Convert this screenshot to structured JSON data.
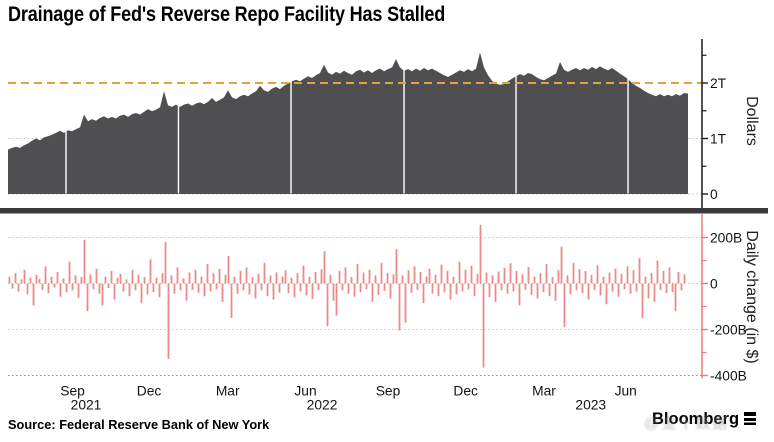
{
  "title": "Drainage of Fed's Reverse Repo Facility Has Stalled",
  "source": "Source: Federal Reserve Bank of New York",
  "branding": {
    "logo": "Bloomberg",
    "watermark": "@金十数据"
  },
  "colors": {
    "area_fill": "#4F4F51",
    "bar_fill": "#EC8A8A",
    "bottom_axis": "#E87C7C",
    "top_axis": "#1A1A1A",
    "reference_line": "#E2A23C",
    "grid_dotted": "#C6C6C6",
    "grid_floor": "#8D8D8D",
    "separator": "#3A3A3C",
    "white_gridline": "#FFFFFF",
    "text": "#141414"
  },
  "x_axis": {
    "month_labels": [
      {
        "text": "Sep",
        "f": 0.0949
      },
      {
        "text": "Dec",
        "f": 0.2074
      },
      {
        "text": "Mar",
        "f": 0.3231
      },
      {
        "text": "Jun",
        "f": 0.4375
      },
      {
        "text": "Sep",
        "f": 0.5588
      },
      {
        "text": "Dec",
        "f": 0.6731
      },
      {
        "text": "Mar",
        "f": 0.7882
      },
      {
        "text": "Jun",
        "f": 0.9084
      }
    ],
    "year_labels": [
      {
        "text": "2021",
        "f": 0.1147
      },
      {
        "text": "2022",
        "f": 0.4618
      },
      {
        "text": "2023",
        "f": 0.857
      }
    ]
  },
  "chart_data": [
    {
      "type": "area",
      "name": "Fed reverse repo facility balance",
      "ylabel": "Dollars",
      "unit": "USD trillions",
      "ylim": [
        0,
        2.77
      ],
      "y_ticks": [
        {
          "value": 2,
          "label": "2T"
        },
        {
          "value": 1,
          "label": "1T"
        },
        {
          "value": 0,
          "label": "0"
        }
      ],
      "y_minor_ticks": [
        2.5,
        1.5,
        0.5
      ],
      "grid_values": [
        1,
        0
      ],
      "reference_line": {
        "value": 2,
        "style": "dashed",
        "color": "#E2A23C"
      },
      "vertical_gridlines_f": [
        0.0853,
        0.2507,
        0.4162,
        0.5824,
        0.7471,
        0.9118
      ],
      "values": [
        0.8,
        0.83,
        0.85,
        0.83,
        0.88,
        0.91,
        0.96,
        1.0,
        0.97,
        1.02,
        1.04,
        1.07,
        1.1,
        1.14,
        1.1,
        1.15,
        1.13,
        1.17,
        1.2,
        1.43,
        1.31,
        1.35,
        1.32,
        1.37,
        1.4,
        1.36,
        1.39,
        1.36,
        1.41,
        1.43,
        1.39,
        1.44,
        1.46,
        1.43,
        1.48,
        1.53,
        1.49,
        1.52,
        1.56,
        1.85,
        1.6,
        1.57,
        1.61,
        1.57,
        1.61,
        1.63,
        1.59,
        1.63,
        1.65,
        1.62,
        1.66,
        1.73,
        1.66,
        1.7,
        1.74,
        1.87,
        1.74,
        1.71,
        1.76,
        1.79,
        1.76,
        1.81,
        1.85,
        1.95,
        1.87,
        1.84,
        1.9,
        1.93,
        1.89,
        1.95,
        1.99,
        2.03,
        2.06,
        2.03,
        2.08,
        2.12,
        2.09,
        2.14,
        2.18,
        2.33,
        2.19,
        2.15,
        2.2,
        2.17,
        2.22,
        2.18,
        2.15,
        2.21,
        2.24,
        2.19,
        2.23,
        2.18,
        2.23,
        2.26,
        2.21,
        2.25,
        2.28,
        2.43,
        2.28,
        2.22,
        2.25,
        2.21,
        2.26,
        2.22,
        2.27,
        2.23,
        2.26,
        2.22,
        2.18,
        2.14,
        2.11,
        2.15,
        2.19,
        2.23,
        2.2,
        2.25,
        2.21,
        2.26,
        2.55,
        2.28,
        2.14,
        2.04,
        1.99,
        1.97,
        1.98,
        2.03,
        2.08,
        2.12,
        2.16,
        2.13,
        2.18,
        2.16,
        2.11,
        2.07,
        2.05,
        2.09,
        2.13,
        2.17,
        2.38,
        2.24,
        2.2,
        2.24,
        2.27,
        2.23,
        2.27,
        2.24,
        2.29,
        2.25,
        2.3,
        2.26,
        2.23,
        2.27,
        2.22,
        2.17,
        2.12,
        2.07,
        2.0,
        1.95,
        1.91,
        1.86,
        1.82,
        1.79,
        1.76,
        1.8,
        1.76,
        1.79,
        1.76,
        1.8,
        1.77,
        1.82,
        1.81
      ]
    },
    {
      "type": "bar",
      "name": "Daily change in facility balance",
      "ylabel": "Daily change (in $)",
      "unit": "USD billions",
      "ylim": [
        -430,
        310
      ],
      "y_ticks": [
        {
          "value": 200,
          "label": "200B"
        },
        {
          "value": 0,
          "label": "0"
        },
        {
          "value": -200,
          "label": "-200B"
        },
        {
          "value": -400,
          "label": "-400B"
        }
      ],
      "y_minor_ticks": [
        100,
        -100,
        -300
      ],
      "grid_values": [
        200,
        0,
        -200,
        -400
      ],
      "values": [
        30,
        -22,
        45,
        -35,
        18,
        60,
        -48,
        25,
        -95,
        38,
        20,
        -28,
        75,
        -42,
        30,
        -18,
        50,
        -58,
        22,
        -38,
        95,
        -30,
        35,
        -62,
        28,
        190,
        -120,
        40,
        -25,
        65,
        -45,
        -95,
        30,
        -20,
        55,
        -70,
        25,
        42,
        -35,
        18,
        -55,
        60,
        -30,
        38,
        -85,
        28,
        -48,
        105,
        -38,
        25,
        -60,
        45,
        180,
        -328,
        35,
        -45,
        70,
        -30,
        22,
        -75,
        48,
        -28,
        60,
        -40,
        30,
        -55,
        85,
        -35,
        45,
        -25,
        65,
        -80,
        38,
        120,
        -150,
        30,
        -45,
        55,
        -30,
        70,
        -48,
        28,
        -65,
        42,
        -30,
        90,
        -55,
        35,
        -70,
        48,
        -40,
        30,
        58,
        -42,
        25,
        -60,
        45,
        -35,
        78,
        -52,
        30,
        -68,
        50,
        -28,
        62,
        140,
        -185,
        38,
        -75,
        -140,
        55,
        -30,
        70,
        -45,
        28,
        -58,
        85,
        -38,
        48,
        -25,
        60,
        -80,
        35,
        -50,
        90,
        -32,
        45,
        -65,
        40,
        150,
        -205,
        35,
        -170,
        58,
        -40,
        75,
        -28,
        50,
        -85,
        30,
        65,
        -45,
        38,
        -55,
        82,
        -38,
        55,
        -70,
        30,
        -48,
        95,
        -35,
        60,
        -25,
        78,
        -55,
        42,
        255,
        -365,
        48,
        -60,
        35,
        -80,
        52,
        -30,
        68,
        -45,
        88,
        -35,
        55,
        -95,
        40,
        -28,
        72,
        -50,
        30,
        -65,
        45,
        -38,
        85,
        -55,
        28,
        -75,
        58,
        160,
        -190,
        35,
        -48,
        90,
        -30,
        62,
        -42,
        55,
        -70,
        38,
        -28,
        80,
        -52,
        30,
        -90,
        48,
        -35,
        65,
        -58,
        42,
        -25,
        75,
        -45,
        58,
        -35,
        110,
        -150,
        30,
        -65,
        45,
        -80,
        100,
        -28,
        55,
        -42,
        70,
        -38,
        -120,
        50,
        -30,
        40
      ]
    }
  ]
}
